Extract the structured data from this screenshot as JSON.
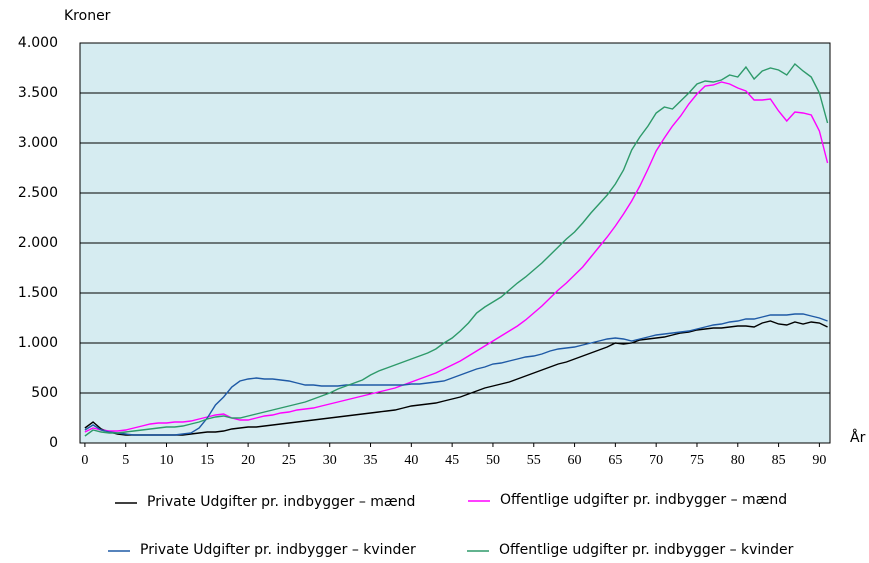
{
  "chart_data": {
    "type": "line",
    "y_label": "Kroner",
    "x_label": "År",
    "x": [
      0,
      1,
      2,
      3,
      4,
      5,
      6,
      7,
      8,
      9,
      10,
      11,
      12,
      13,
      14,
      15,
      16,
      17,
      18,
      19,
      20,
      21,
      22,
      23,
      24,
      25,
      26,
      27,
      28,
      29,
      30,
      31,
      32,
      33,
      34,
      35,
      36,
      37,
      38,
      39,
      40,
      41,
      42,
      43,
      44,
      45,
      46,
      47,
      48,
      49,
      50,
      51,
      52,
      53,
      54,
      55,
      56,
      57,
      58,
      59,
      60,
      61,
      62,
      63,
      64,
      65,
      66,
      67,
      68,
      69,
      70,
      71,
      72,
      73,
      74,
      75,
      76,
      77,
      78,
      79,
      80,
      81,
      82,
      83,
      84,
      85,
      86,
      87,
      88,
      89,
      90,
      91
    ],
    "series": [
      {
        "name": "Private Udgifter pr. indbygger – mænd",
        "color": "#000000",
        "values": [
          150,
          210,
          140,
          110,
          90,
          80,
          80,
          80,
          80,
          80,
          80,
          80,
          80,
          90,
          100,
          110,
          110,
          120,
          140,
          150,
          160,
          160,
          170,
          180,
          190,
          200,
          210,
          220,
          230,
          240,
          250,
          260,
          270,
          280,
          290,
          300,
          310,
          320,
          330,
          350,
          370,
          380,
          390,
          400,
          420,
          440,
          460,
          490,
          520,
          550,
          570,
          590,
          610,
          640,
          670,
          700,
          730,
          760,
          790,
          810,
          840,
          870,
          900,
          930,
          960,
          1000,
          990,
          1000,
          1030,
          1040,
          1050,
          1060,
          1080,
          1100,
          1110,
          1130,
          1140,
          1150,
          1150,
          1160,
          1170,
          1170,
          1160,
          1200,
          1220,
          1190,
          1180,
          1210,
          1190,
          1210,
          1200,
          1160
        ]
      },
      {
        "name": "Offentlige udgifter pr. indbygger – mænd",
        "color": "#ff00ff",
        "values": [
          110,
          150,
          130,
          120,
          120,
          130,
          150,
          170,
          190,
          200,
          200,
          210,
          210,
          220,
          240,
          260,
          280,
          290,
          250,
          230,
          230,
          250,
          270,
          280,
          300,
          310,
          330,
          340,
          350,
          370,
          390,
          410,
          430,
          450,
          470,
          490,
          510,
          530,
          550,
          580,
          610,
          640,
          670,
          700,
          740,
          780,
          820,
          870,
          920,
          970,
          1020,
          1070,
          1120,
          1170,
          1230,
          1300,
          1370,
          1450,
          1530,
          1600,
          1680,
          1760,
          1860,
          1960,
          2060,
          2170,
          2290,
          2420,
          2570,
          2740,
          2920,
          3050,
          3170,
          3270,
          3390,
          3490,
          3570,
          3580,
          3610,
          3590,
          3550,
          3520,
          3430,
          3430,
          3440,
          3320,
          3220,
          3310,
          3300,
          3280,
          3120,
          2800
        ]
      },
      {
        "name": "Private Udgifter pr. indbygger – kvinder",
        "color": "#1f5aa6",
        "values": [
          130,
          180,
          130,
          110,
          100,
          90,
          80,
          80,
          80,
          80,
          80,
          80,
          90,
          100,
          150,
          250,
          380,
          460,
          560,
          620,
          640,
          650,
          640,
          640,
          630,
          620,
          600,
          580,
          580,
          570,
          570,
          570,
          580,
          580,
          580,
          580,
          580,
          580,
          580,
          580,
          590,
          590,
          600,
          610,
          620,
          650,
          680,
          710,
          740,
          760,
          790,
          800,
          820,
          840,
          860,
          870,
          890,
          920,
          940,
          950,
          960,
          980,
          1000,
          1020,
          1040,
          1050,
          1040,
          1020,
          1040,
          1060,
          1080,
          1090,
          1100,
          1110,
          1120,
          1140,
          1160,
          1180,
          1190,
          1210,
          1220,
          1240,
          1240,
          1260,
          1280,
          1280,
          1280,
          1290,
          1290,
          1270,
          1250,
          1220
        ]
      },
      {
        "name": "Offentlige udgifter pr. indbygger – kvinder",
        "color": "#2e9a6a",
        "values": [
          70,
          130,
          110,
          100,
          100,
          110,
          120,
          130,
          140,
          150,
          160,
          160,
          170,
          190,
          210,
          240,
          260,
          270,
          250,
          250,
          270,
          290,
          310,
          330,
          350,
          370,
          390,
          410,
          440,
          470,
          500,
          540,
          570,
          600,
          630,
          680,
          720,
          750,
          780,
          810,
          840,
          870,
          900,
          940,
          1000,
          1050,
          1120,
          1200,
          1300,
          1360,
          1410,
          1460,
          1530,
          1600,
          1660,
          1730,
          1800,
          1880,
          1960,
          2040,
          2110,
          2200,
          2300,
          2390,
          2480,
          2590,
          2730,
          2930,
          3060,
          3170,
          3300,
          3360,
          3340,
          3420,
          3500,
          3590,
          3620,
          3610,
          3630,
          3680,
          3660,
          3760,
          3640,
          3720,
          3750,
          3730,
          3680,
          3790,
          3720,
          3660,
          3500,
          3200
        ]
      }
    ],
    "xlim": [
      -0.6,
      91.3
    ],
    "xticks": [
      0,
      5,
      10,
      15,
      20,
      25,
      30,
      35,
      40,
      45,
      50,
      55,
      60,
      65,
      70,
      75,
      80,
      85,
      90
    ],
    "ylim": [
      0,
      4000
    ],
    "yticks": [
      0,
      500,
      {
        "value": 1000,
        "label": "1.000"
      },
      {
        "value": 1500,
        "label": "1.500"
      },
      {
        "value": 2000,
        "label": "2.000"
      },
      {
        "value": 2500,
        "label": "2.500"
      },
      {
        "value": 3000,
        "label": "3.000"
      },
      {
        "value": 3500,
        "label": "3.500"
      },
      {
        "value": 4000,
        "label": "4.000"
      }
    ],
    "grid": true,
    "background": "#d6ecf1"
  }
}
